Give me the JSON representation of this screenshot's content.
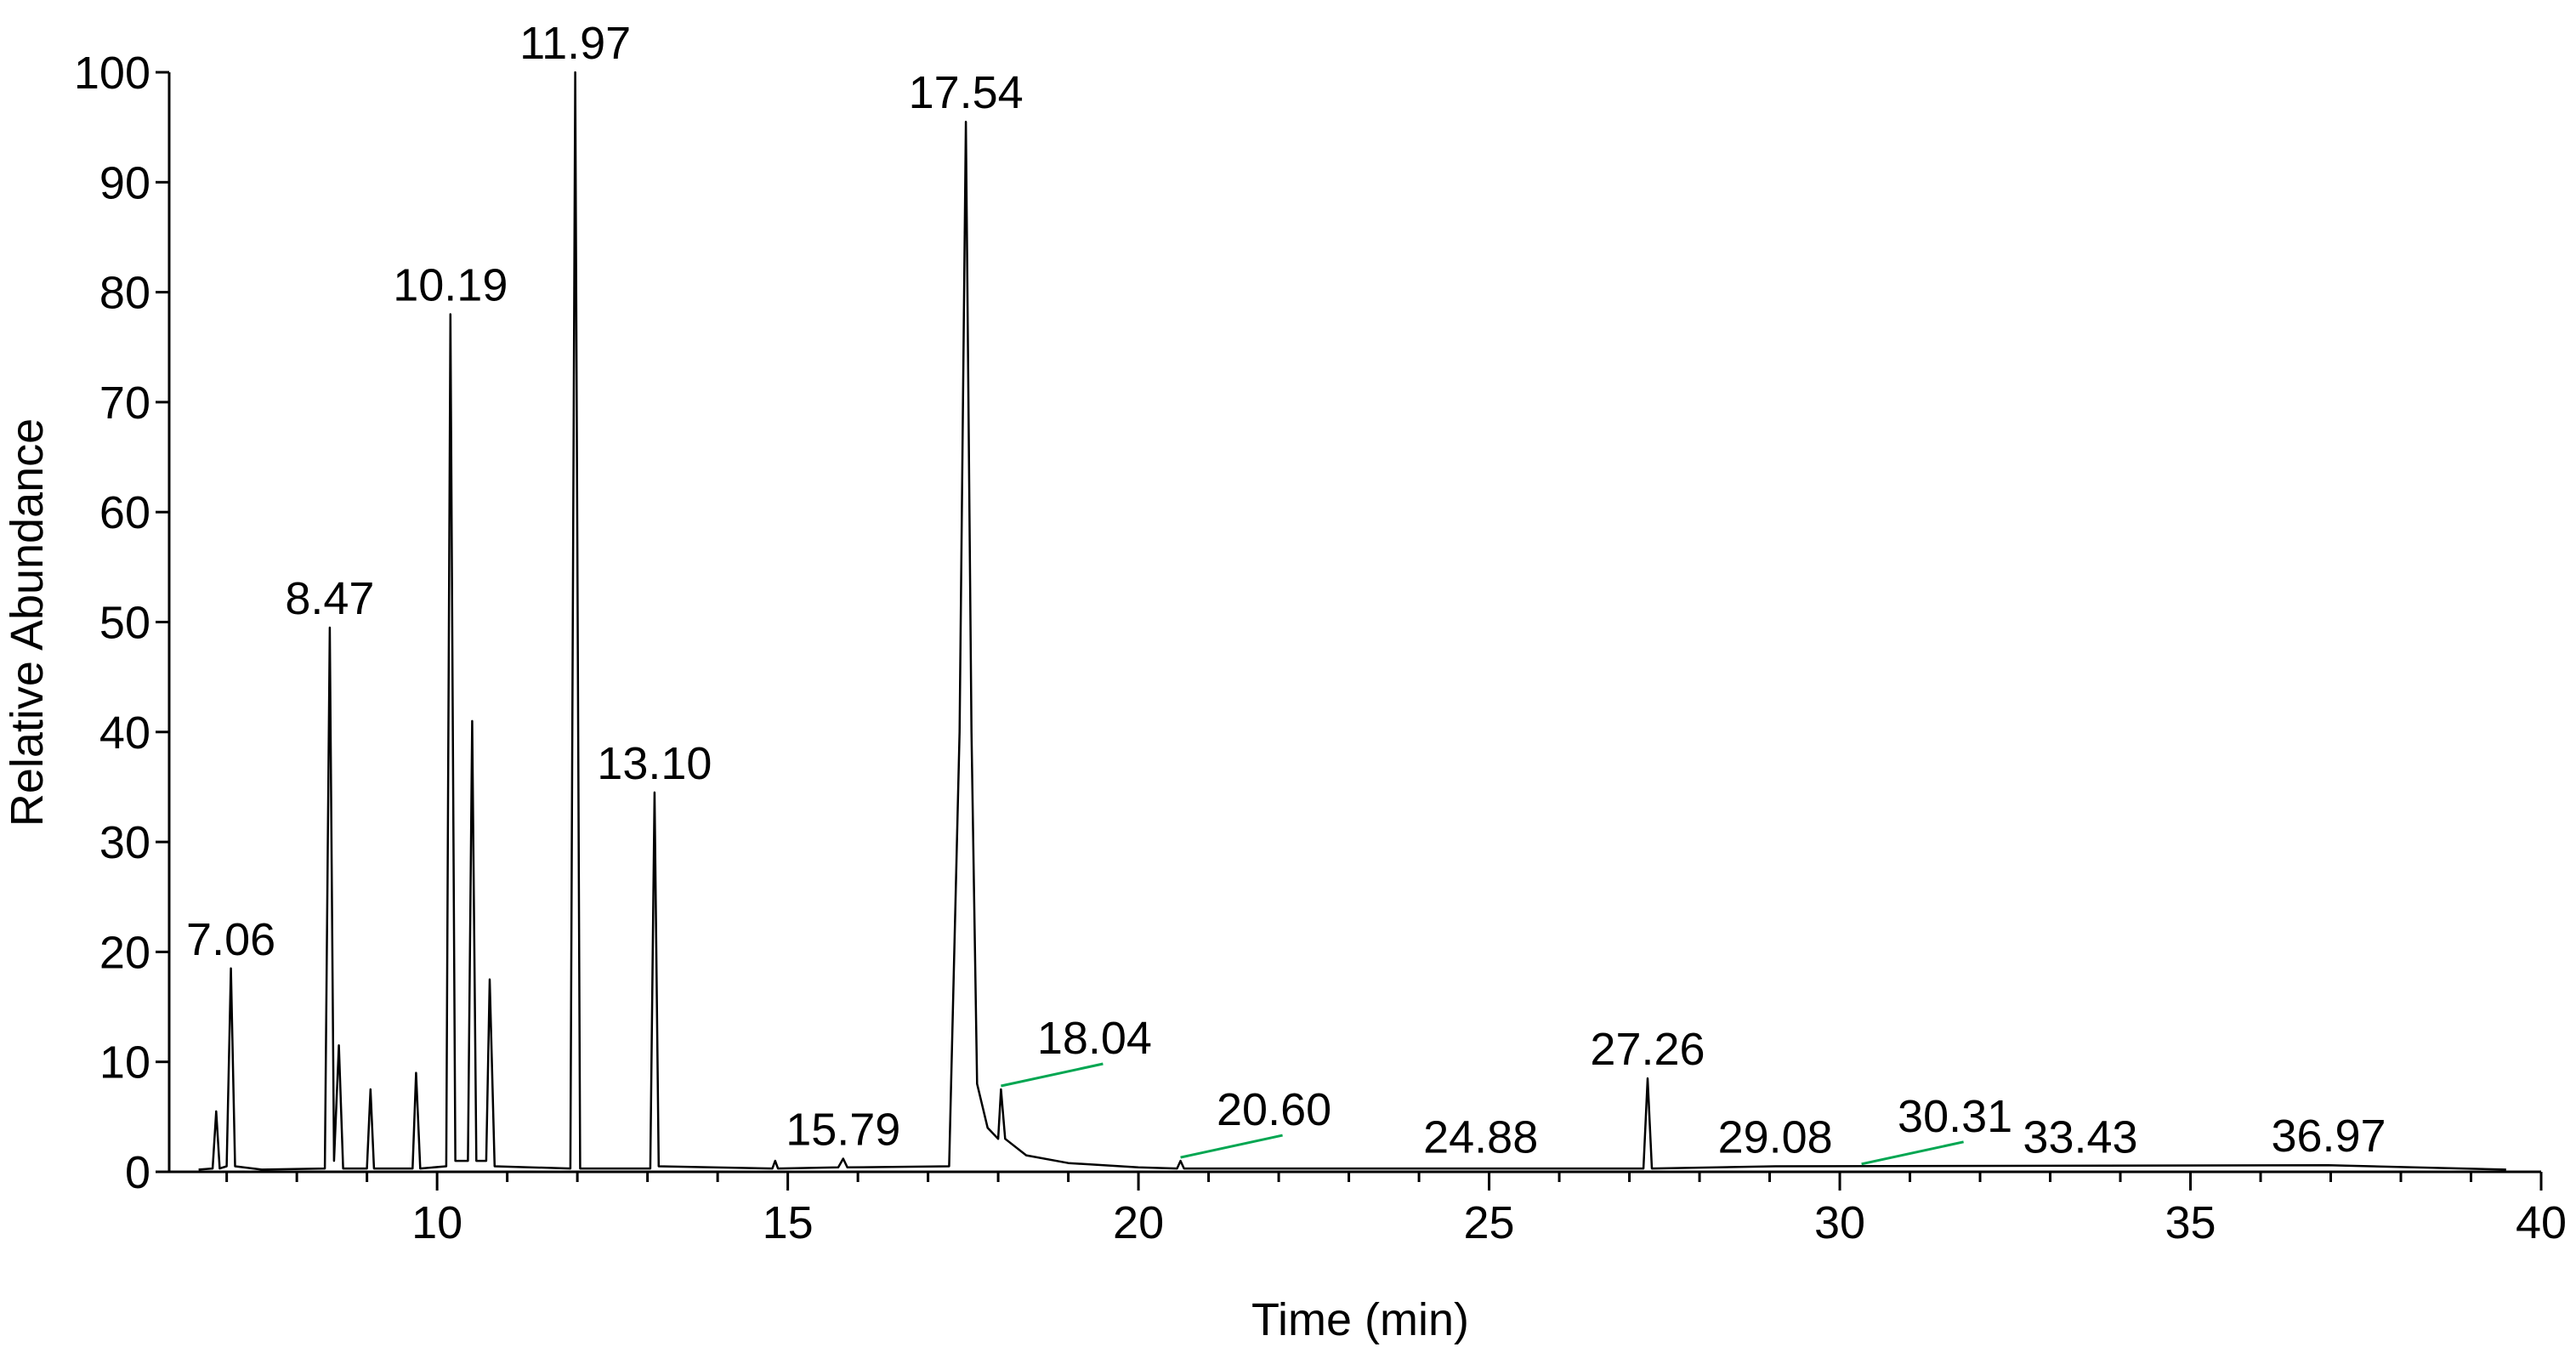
{
  "chart_data": {
    "type": "line",
    "xlabel": "Time (min)",
    "ylabel": "Relative Abundance",
    "color": "#000000",
    "x": [
      6.6,
      6.8,
      6.85,
      6.9,
      7.0,
      7.06,
      7.12,
      7.5,
      8.4,
      8.47,
      8.53,
      8.6,
      8.66,
      9.0,
      9.05,
      9.1,
      9.65,
      9.7,
      9.76,
      10.13,
      10.19,
      10.26,
      10.44,
      10.5,
      10.56,
      10.7,
      10.75,
      10.82,
      11.9,
      11.97,
      12.04,
      13.04,
      13.1,
      13.16,
      14.78,
      14.82,
      14.86,
      15.72,
      15.79,
      15.85,
      17.3,
      17.45,
      17.54,
      17.62,
      17.7,
      17.85,
      18.0,
      18.04,
      18.1,
      18.4,
      19.0,
      20.0,
      20.55,
      20.6,
      20.65,
      27.2,
      27.26,
      27.32,
      29.08,
      36.97,
      39.5
    ],
    "values": [
      0.2,
      0.3,
      5.5,
      0.3,
      0.5,
      18.5,
      0.5,
      0.2,
      0.3,
      49.5,
      1,
      11.5,
      0.3,
      0.3,
      7.5,
      0.3,
      0.3,
      9,
      0.3,
      0.5,
      78,
      1,
      1,
      41,
      1,
      1,
      17.5,
      0.5,
      0.3,
      100,
      0.3,
      0.3,
      34.5,
      0.5,
      0.3,
      1,
      0.3,
      0.4,
      1.2,
      0.4,
      0.5,
      40,
      95.5,
      40,
      8,
      4,
      3,
      7.5,
      3,
      1.5,
      0.8,
      0.4,
      0.3,
      1,
      0.3,
      0.3,
      8.5,
      0.3,
      0.5,
      0.6,
      0.2
    ],
    "xlim": [
      6.18,
      40
    ],
    "ylim": [
      0,
      100
    ],
    "xticks": [
      10,
      15,
      20,
      25,
      30,
      35,
      40
    ],
    "xminorticks": [
      7,
      8,
      9,
      11,
      12,
      13,
      14,
      16,
      17,
      18,
      19,
      21,
      22,
      23,
      24,
      26,
      27,
      28,
      29,
      31,
      32,
      33,
      34,
      36,
      37,
      38,
      39
    ],
    "yticks": [
      0,
      10,
      20,
      30,
      40,
      50,
      60,
      70,
      80,
      90,
      100
    ],
    "annotations": [
      {
        "text": "7.06",
        "x": 7.06,
        "y": 18.5
      },
      {
        "text": "8.47",
        "x": 8.47,
        "y": 49.5
      },
      {
        "text": "10.19",
        "x": 10.19,
        "y": 78
      },
      {
        "text": "11.97",
        "x": 11.97,
        "y": 100
      },
      {
        "text": "13.10",
        "x": 13.1,
        "y": 34.5
      },
      {
        "text": "15.79",
        "x": 15.79,
        "y": 1.2
      },
      {
        "text": "17.54",
        "x": 17.54,
        "y": 95.5
      },
      {
        "text": "18.04",
        "x": 18.04,
        "y": 7.5,
        "leader_color": "#00a651"
      },
      {
        "text": "20.60",
        "x": 20.6,
        "y": 1,
        "leader_color": "#00a651"
      },
      {
        "text": "24.88",
        "x": 24.88,
        "y": 0.5
      },
      {
        "text": "27.26",
        "x": 27.26,
        "y": 8.5
      },
      {
        "text": "29.08",
        "x": 29.08,
        "y": 0.5
      },
      {
        "text": "30.31",
        "x": 30.31,
        "y": 0.4,
        "leader_color": "#00a651"
      },
      {
        "text": "33.43",
        "x": 33.43,
        "y": 0.5
      },
      {
        "text": "36.97",
        "x": 36.97,
        "y": 0.6
      }
    ]
  }
}
